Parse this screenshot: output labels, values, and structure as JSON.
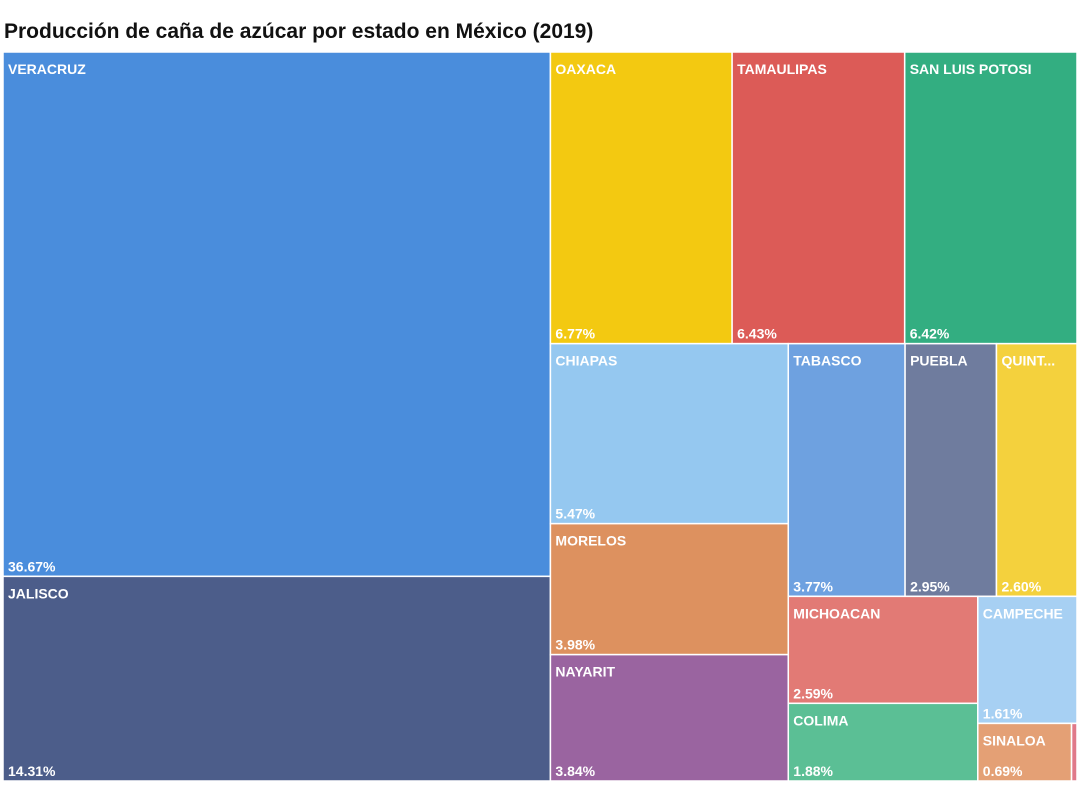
{
  "chart_data": {
    "type": "treemap",
    "title": "Producción de caña de azúcar por estado en México (2019)",
    "categories": [
      "VERACRUZ",
      "JALISCO",
      "OAXACA",
      "TAMAULIPAS",
      "SAN LUIS POTOSI",
      "CHIAPAS",
      "TABASCO",
      "PUEBLA",
      "QUINT...",
      "MORELOS",
      "NAYARIT",
      "MICHOACAN",
      "CAMPECHE",
      "COLIMA",
      "SINALOA",
      null
    ],
    "values": [
      36.67,
      14.31,
      6.77,
      6.43,
      6.42,
      5.47,
      3.77,
      2.95,
      2.6,
      3.98,
      3.84,
      2.59,
      1.61,
      1.88,
      0.69,
      0.04
    ],
    "value_labels": [
      "36.67%",
      "14.31%",
      "6.77%",
      "6.43%",
      "6.42%",
      "5.47%",
      "3.77%",
      "2.95%",
      "2.60%",
      "3.98%",
      "3.84%",
      "2.59%",
      "1.61%",
      "1.88%",
      "0.69%",
      null
    ],
    "colors": [
      "#4a8ddc",
      "#4c5d8a",
      "#f3c911",
      "#dc5b57",
      "#33ae81",
      "#95c8f0",
      "#6ea1e0",
      "#6f7c9e",
      "#f4d13d",
      "#dd915f",
      "#9a64a0",
      "#e27a75",
      "#a7d0f3",
      "#5bbf95",
      "#e4a075",
      "#e07a8a"
    ]
  }
}
